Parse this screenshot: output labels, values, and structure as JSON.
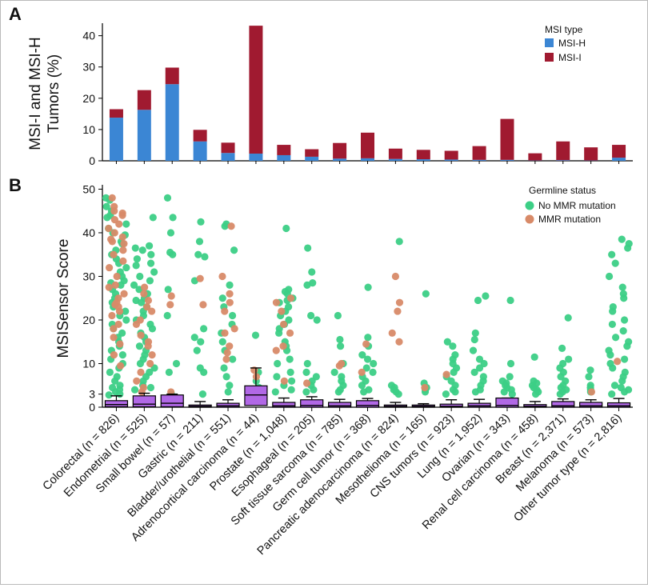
{
  "chart_data": [
    {
      "panel_label": "A",
      "type": "bar",
      "stacked": true,
      "categories": [
        "Colorectal",
        "Endometrial",
        "Small bowel",
        "Gastric",
        "Bladder/urothelial",
        "Adrenocortical carcinoma",
        "Prostate",
        "Esophageal",
        "Soft tissue sarcoma",
        "Germ cell tumor",
        "Pancreatic adenocarcinoma",
        "Mesothelioma",
        "CNS tumors",
        "Lung",
        "Ovarian",
        "Renal cell carcinoma",
        "Breast",
        "Melanoma",
        "Other tumor type"
      ],
      "series": [
        {
          "name": "MSI-H",
          "color": "#3b86d4",
          "values": [
            13.8,
            16.3,
            24.5,
            6.2,
            2.5,
            2.3,
            1.8,
            1.3,
            0.7,
            0.8,
            0.6,
            0.5,
            0.4,
            0.3,
            0.3,
            0.1,
            0.2,
            0.1,
            1.0
          ]
        },
        {
          "name": "MSI-I",
          "color": "#a01a30",
          "values": [
            2.7,
            6.3,
            5.3,
            3.7,
            3.3,
            40.9,
            3.3,
            2.4,
            5.0,
            8.2,
            3.3,
            3.0,
            2.8,
            4.4,
            13.1,
            2.3,
            6.0,
            4.2,
            4.1
          ]
        }
      ],
      "ylabel": "MSI-I and MSI-H\nTumors (%)",
      "ylim": [
        0,
        44
      ],
      "yticks": [
        0,
        10,
        20,
        30,
        40
      ],
      "legend": {
        "title": "MSI type",
        "position": "top-right"
      }
    },
    {
      "panel_label": "B",
      "type": "scatter",
      "categories": [
        "Colorectal (n = 826)",
        "Endometrial (n = 525)",
        "Small bowel (n = 57)",
        "Gastric (n = 211)",
        "Bladder/urothelial (n = 551)",
        "Adrenocortical carcinoma (n = 44)",
        "Prostate (n = 1,048)",
        "Esophageal (n = 205)",
        "Soft tissue sarcoma (n = 785)",
        "Germ cell tumor (n = 368)",
        "Pancreatic adenocarcinoma (n = 824)",
        "Mesothelioma (n = 165)",
        "CNS tumors (n = 923)",
        "Lung (n = 1,952)",
        "Ovarian (n = 343)",
        "Renal cell carcinoma (n = 458)",
        "Breast (n = 2,371)",
        "Melanoma (n = 573)",
        "Other tumor type (n = 2,816)"
      ],
      "ylabel": "MSISensor Score",
      "ylim": [
        0,
        51
      ],
      "yticks": [
        0,
        3,
        10,
        20,
        30,
        40,
        50
      ],
      "legend": {
        "title": "Germline status",
        "position": "top-right"
      },
      "series": [
        {
          "name": "No MMR mutation",
          "color": "#3ccf86"
        },
        {
          "name": "MMR mutation",
          "color": "#d88a68"
        }
      ],
      "box_color": "#b168e6",
      "boxes": [
        {
          "q1": 0.1,
          "median": 0.6,
          "q3": 1.5,
          "whisker": 2.6
        },
        {
          "q1": 0.1,
          "median": 0.7,
          "q3": 2.6,
          "whisker": 3.2
        },
        {
          "q1": 0.1,
          "median": 0.9,
          "q3": 2.8,
          "whisker": 3.0
        },
        {
          "q1": 0.0,
          "median": 0.2,
          "q3": 0.5,
          "whisker": 1.3
        },
        {
          "q1": 0.0,
          "median": 0.3,
          "q3": 0.9,
          "whisker": 1.7
        },
        {
          "q1": 0.4,
          "median": 2.8,
          "q3": 4.9,
          "whisker": 9.0
        },
        {
          "q1": 0.0,
          "median": 0.3,
          "q3": 1.1,
          "whisker": 2.1
        },
        {
          "q1": 0.0,
          "median": 0.4,
          "q3": 1.7,
          "whisker": 2.4
        },
        {
          "q1": 0.0,
          "median": 0.3,
          "q3": 1.1,
          "whisker": 1.8
        },
        {
          "q1": 0.0,
          "median": 0.4,
          "q3": 1.5,
          "whisker": 2.0
        },
        {
          "q1": 0.0,
          "median": 0.2,
          "q3": 0.5,
          "whisker": 1.1
        },
        {
          "q1": 0.0,
          "median": 0.2,
          "q3": 0.5,
          "whisker": 0.8
        },
        {
          "q1": 0.0,
          "median": 0.2,
          "q3": 0.7,
          "whisker": 1.7
        },
        {
          "q1": 0.0,
          "median": 0.3,
          "q3": 0.9,
          "whisker": 1.8
        },
        {
          "q1": 0.0,
          "median": 0.4,
          "q3": 2.1,
          "whisker": 2.1
        },
        {
          "q1": 0.0,
          "median": 0.2,
          "q3": 0.6,
          "whisker": 1.3
        },
        {
          "q1": 0.0,
          "median": 0.3,
          "q3": 1.3,
          "whisker": 1.9
        },
        {
          "q1": 0.0,
          "median": 0.3,
          "q3": 1.1,
          "whisker": 1.7
        },
        {
          "q1": 0.0,
          "median": 0.3,
          "q3": 1.0,
          "whisker": 2.0
        }
      ],
      "points": [
        {
          "green": [
            48.0,
            47.5,
            46,
            45,
            44,
            43.5,
            42,
            41,
            40,
            39.5,
            38,
            37.5,
            36,
            35,
            34,
            33,
            32,
            31,
            30,
            29,
            28.5,
            28,
            27,
            26,
            25,
            24,
            23,
            22,
            21,
            20,
            19,
            18,
            17,
            16,
            15,
            14,
            13,
            12,
            11,
            10,
            9,
            8,
            7,
            6,
            5,
            4.5,
            4,
            3.5,
            3,
            2.8
          ],
          "orange": [
            48,
            46,
            45,
            44.5,
            44,
            43,
            42,
            41,
            40,
            39,
            38.5,
            38,
            37.5,
            36,
            35,
            33.5,
            32,
            30,
            28,
            27.5,
            26,
            25,
            24,
            23.5,
            23,
            22,
            21,
            19,
            18,
            16,
            14.5,
            12,
            9.5
          ]
        },
        {
          "green": [
            43.5,
            37,
            36.5,
            36,
            35,
            34,
            33,
            32.5,
            31,
            30,
            29,
            28,
            27,
            26,
            25,
            24.5,
            24,
            23,
            22,
            21,
            20,
            19,
            18,
            17,
            16,
            15,
            14,
            13,
            12,
            11,
            10,
            9,
            8,
            7,
            6,
            5,
            4.5,
            4
          ],
          "orange": [
            27.5,
            26,
            24.5,
            23,
            22,
            20,
            19,
            16.5,
            15,
            14,
            12,
            10,
            8,
            6,
            4.5,
            3.5
          ]
        },
        {
          "green": [
            48,
            43.5,
            40,
            35.5,
            35,
            27,
            21,
            10,
            8,
            3
          ],
          "orange": [
            25.5,
            23.5,
            3.5
          ]
        },
        {
          "green": [
            42.5,
            38,
            35,
            34.5,
            29,
            18,
            16,
            15,
            13,
            9,
            8,
            3
          ],
          "orange": [
            29.5,
            23.5
          ]
        },
        {
          "green": [
            42,
            41.5,
            36,
            28,
            25,
            23,
            21,
            19,
            17,
            15,
            13,
            11,
            9,
            7,
            5,
            3.5
          ],
          "orange": [
            41.5,
            30,
            26,
            24,
            22,
            18,
            17,
            14,
            12.5,
            11
          ]
        },
        {
          "green": [
            16.5,
            8,
            6,
            4.5,
            4
          ],
          "orange": [
            8.5,
            7
          ]
        },
        {
          "green": [
            41,
            27,
            26.5,
            26,
            25,
            24.5,
            24,
            23,
            22,
            21,
            20,
            19,
            18,
            17,
            15,
            14,
            13,
            11,
            10,
            8,
            7,
            6,
            5,
            4,
            3.5
          ],
          "orange": [
            25,
            24,
            22,
            19,
            17,
            14,
            13,
            6
          ]
        },
        {
          "green": [
            36.5,
            31,
            28.5,
            28,
            21,
            20,
            10,
            8,
            7,
            6,
            5,
            4,
            3.5
          ],
          "orange": [
            5.5
          ]
        },
        {
          "green": [
            21,
            15.5,
            14,
            10,
            8,
            7,
            6,
            5,
            4,
            3.5
          ],
          "orange": [
            9.5,
            10
          ]
        },
        {
          "green": [
            27.5,
            16,
            14,
            12,
            11,
            10,
            9,
            8,
            7,
            6,
            5,
            4,
            3.5
          ],
          "orange": [
            14.5,
            8
          ]
        },
        {
          "green": [
            38,
            5,
            4.5,
            4,
            3.5,
            3
          ],
          "orange": [
            30,
            24,
            22,
            17,
            15
          ]
        },
        {
          "green": [
            26,
            5.5,
            4.5,
            4,
            3.5
          ],
          "orange": [
            4.5
          ]
        },
        {
          "green": [
            15,
            14,
            12,
            11,
            10,
            9,
            8,
            7,
            6,
            5,
            4,
            3.5,
            3
          ],
          "orange": [
            7.5
          ]
        },
        {
          "green": [
            25.5,
            24.5,
            17,
            15.5,
            13,
            11,
            10,
            9,
            8,
            7,
            6,
            5,
            4,
            3.5
          ],
          "orange": []
        },
        {
          "green": [
            24.5,
            10,
            7,
            6,
            5.5,
            5,
            4.5,
            4,
            3.5,
            3
          ],
          "orange": []
        },
        {
          "green": [
            11.5,
            6,
            5.5,
            5,
            4.5,
            4,
            3.5,
            3
          ],
          "orange": []
        },
        {
          "green": [
            20.5,
            13.5,
            11,
            10,
            9,
            8,
            7,
            6,
            5,
            4.5,
            4,
            3.5,
            3
          ],
          "orange": []
        },
        {
          "green": [
            8.5,
            7,
            5,
            4.5,
            4,
            3.5
          ],
          "orange": [
            3.5
          ]
        },
        {
          "green": [
            38.5,
            37.5,
            36.5,
            35,
            33,
            30,
            27.5,
            26,
            25,
            23,
            22,
            20,
            19,
            17.5,
            16,
            15,
            14,
            13,
            12,
            11,
            10,
            9,
            8,
            7,
            6,
            5,
            4.5,
            4,
            3.5,
            3
          ],
          "orange": [
            10.5
          ]
        }
      ]
    }
  ]
}
